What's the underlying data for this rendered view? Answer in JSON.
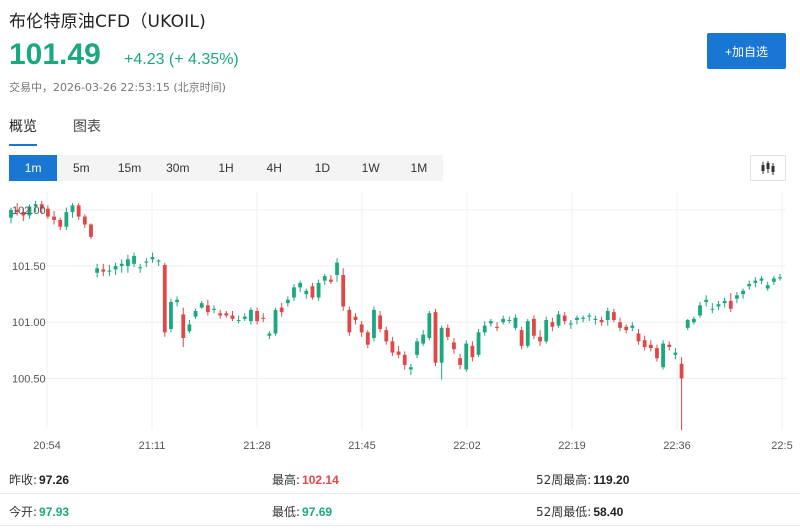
{
  "header": {
    "title": "布伦特原油CFD（UKOIL)",
    "price": "101.49",
    "change": "+4.23 (+ 4.35%)",
    "status": "交易中，2026-03-26 22:53:15 (北京时间)",
    "add_label": "+加自选"
  },
  "tabs": [
    {
      "label": "概览",
      "active": true
    },
    {
      "label": "图表",
      "active": false
    }
  ],
  "intervals": [
    {
      "label": "1m",
      "active": true
    },
    {
      "label": "5m"
    },
    {
      "label": "15m"
    },
    {
      "label": "30m"
    },
    {
      "label": "1H"
    },
    {
      "label": "4H"
    },
    {
      "label": "1D"
    },
    {
      "label": "1W"
    },
    {
      "label": "1M"
    }
  ],
  "chart_type_icon": "candlestick-icon",
  "colors": {
    "up": "#1aa97f",
    "down": "#e04848",
    "accent": "#1976d2"
  },
  "chart_data": {
    "type": "candlestick",
    "y_ticks": [
      "102.00",
      "101.50",
      "101.00",
      "100.50"
    ],
    "y_tick_values": [
      102.0,
      101.5,
      101.0,
      100.5
    ],
    "ylim": [
      100.05,
      102.15
    ],
    "x_ticks": [
      "20:54",
      "21:11",
      "21:28",
      "21:45",
      "22:02",
      "22:19",
      "22:36",
      "22:5"
    ],
    "grid": true,
    "candles": [
      [
        101.93,
        102.02,
        101.88,
        102.0
      ],
      [
        102.0,
        102.06,
        101.95,
        101.98
      ],
      [
        101.98,
        102.02,
        101.9,
        101.95
      ],
      [
        101.95,
        102.05,
        101.92,
        102.03
      ],
      [
        102.03,
        102.08,
        101.98,
        102.05
      ],
      [
        102.05,
        102.08,
        101.97,
        102.01
      ],
      [
        102.01,
        102.04,
        101.92,
        101.94
      ],
      [
        101.94,
        101.99,
        101.87,
        101.91
      ],
      [
        101.91,
        101.93,
        101.82,
        101.85
      ],
      [
        101.85,
        102.02,
        101.82,
        101.98
      ],
      [
        101.98,
        102.06,
        101.93,
        102.04
      ],
      [
        102.04,
        102.06,
        101.91,
        101.94
      ],
      [
        101.94,
        101.96,
        101.84,
        101.87
      ],
      [
        101.87,
        101.88,
        101.74,
        101.76
      ],
      [
        101.44,
        101.52,
        101.4,
        101.48
      ],
      [
        101.47,
        101.52,
        101.41,
        101.45
      ],
      [
        101.45,
        101.51,
        101.41,
        101.46
      ],
      [
        101.47,
        101.53,
        101.42,
        101.5
      ],
      [
        101.5,
        101.56,
        101.44,
        101.52
      ],
      [
        101.5,
        101.6,
        101.44,
        101.56
      ],
      [
        101.52,
        101.62,
        101.49,
        101.59
      ],
      [
        101.48,
        101.52,
        101.44,
        101.49
      ],
      [
        101.53,
        101.57,
        101.49,
        101.54
      ],
      [
        101.56,
        101.62,
        101.53,
        101.58
      ],
      [
        101.54,
        101.56,
        101.5,
        101.55
      ],
      [
        101.51,
        101.53,
        100.87,
        100.91
      ],
      [
        100.94,
        101.21,
        100.91,
        101.18
      ],
      [
        101.18,
        101.23,
        101.14,
        101.2
      ],
      [
        101.07,
        101.13,
        100.78,
        100.86
      ],
      [
        100.92,
        101.02,
        100.9,
        100.98
      ],
      [
        101.05,
        101.12,
        101.03,
        101.1
      ],
      [
        101.13,
        101.19,
        101.12,
        101.17
      ],
      [
        101.15,
        101.2,
        101.06,
        101.09
      ],
      [
        101.11,
        101.15,
        101.08,
        101.12
      ],
      [
        101.08,
        101.11,
        101.03,
        101.06
      ],
      [
        101.08,
        101.1,
        101.04,
        101.06
      ],
      [
        101.06,
        101.1,
        101.01,
        101.03
      ],
      [
        101.02,
        101.06,
        100.99,
        101.02
      ],
      [
        101.03,
        101.08,
        101.01,
        101.05
      ],
      [
        101.01,
        101.13,
        100.98,
        101.11
      ],
      [
        101.1,
        101.13,
        100.98,
        101.01
      ],
      [
        101.04,
        101.08,
        101.0,
        101.03
      ],
      [
        100.88,
        100.92,
        100.85,
        100.9
      ],
      [
        100.9,
        101.13,
        100.88,
        101.11
      ],
      [
        101.13,
        101.17,
        101.05,
        101.09
      ],
      [
        101.17,
        101.23,
        101.14,
        101.2
      ],
      [
        101.22,
        101.34,
        101.19,
        101.31
      ],
      [
        101.31,
        101.37,
        101.27,
        101.35
      ],
      [
        101.25,
        101.3,
        101.21,
        101.28
      ],
      [
        101.32,
        101.35,
        101.2,
        101.22
      ],
      [
        101.22,
        101.38,
        101.19,
        101.35
      ],
      [
        101.37,
        101.43,
        101.33,
        101.41
      ],
      [
        101.38,
        101.42,
        101.34,
        101.36
      ],
      [
        101.42,
        101.57,
        101.36,
        101.53
      ],
      [
        101.42,
        101.48,
        101.1,
        101.14
      ],
      [
        101.11,
        101.14,
        100.88,
        100.91
      ],
      [
        101.05,
        101.08,
        100.98,
        101.02
      ],
      [
        100.98,
        101.01,
        100.87,
        100.91
      ],
      [
        100.91,
        100.93,
        100.77,
        100.8
      ],
      [
        100.86,
        101.14,
        100.83,
        101.11
      ],
      [
        101.06,
        101.1,
        100.91,
        100.94
      ],
      [
        100.93,
        100.96,
        100.8,
        100.83
      ],
      [
        100.83,
        100.87,
        100.7,
        100.73
      ],
      [
        100.74,
        100.79,
        100.68,
        100.71
      ],
      [
        100.71,
        100.74,
        100.58,
        100.62
      ],
      [
        100.58,
        100.63,
        100.53,
        100.6
      ],
      [
        100.71,
        100.86,
        100.68,
        100.83
      ],
      [
        100.81,
        100.93,
        100.79,
        100.89
      ],
      [
        100.86,
        101.1,
        100.84,
        101.08
      ],
      [
        101.09,
        101.12,
        100.61,
        100.64
      ],
      [
        100.64,
        100.97,
        100.49,
        100.95
      ],
      [
        100.95,
        100.98,
        100.84,
        100.87
      ],
      [
        100.82,
        100.86,
        100.72,
        100.76
      ],
      [
        100.68,
        100.72,
        100.58,
        100.62
      ],
      [
        100.58,
        100.84,
        100.56,
        100.81
      ],
      [
        100.79,
        100.83,
        100.65,
        100.69
      ],
      [
        100.71,
        100.94,
        100.69,
        100.91
      ],
      [
        100.91,
        101.01,
        100.88,
        100.97
      ],
      [
        100.99,
        101.03,
        100.96,
        101.01
      ],
      [
        100.96,
        101.0,
        100.92,
        100.95
      ],
      [
        101.0,
        101.06,
        100.98,
        101.03
      ],
      [
        101.02,
        101.05,
        100.99,
        101.02
      ],
      [
        100.95,
        101.07,
        100.93,
        101.04
      ],
      [
        100.93,
        100.96,
        100.76,
        100.79
      ],
      [
        100.79,
        101.03,
        100.77,
        101.01
      ],
      [
        101.03,
        101.06,
        100.85,
        100.88
      ],
      [
        100.87,
        100.93,
        100.79,
        100.83
      ],
      [
        100.83,
        101.05,
        100.81,
        101.02
      ],
      [
        101.0,
        101.04,
        100.92,
        100.96
      ],
      [
        100.97,
        101.1,
        100.95,
        101.07
      ],
      [
        101.06,
        101.09,
        100.98,
        101.01
      ],
      [
        100.98,
        101.02,
        100.94,
        100.99
      ],
      [
        101.02,
        101.06,
        100.98,
        101.04
      ],
      [
        101.03,
        101.06,
        101.0,
        101.04
      ],
      [
        101.05,
        101.08,
        101.01,
        101.06
      ],
      [
        101.02,
        101.06,
        100.98,
        101.03
      ],
      [
        101.02,
        101.05,
        100.97,
        101.0
      ],
      [
        101.02,
        101.13,
        100.97,
        101.1
      ],
      [
        101.09,
        101.12,
        101.0,
        101.02
      ],
      [
        101.0,
        101.04,
        100.92,
        100.95
      ],
      [
        100.96,
        100.98,
        100.9,
        100.93
      ],
      [
        100.95,
        101.0,
        100.92,
        100.97
      ],
      [
        100.9,
        100.94,
        100.8,
        100.83
      ],
      [
        100.84,
        100.88,
        100.75,
        100.78
      ],
      [
        100.8,
        100.84,
        100.74,
        100.77
      ],
      [
        100.77,
        100.8,
        100.65,
        100.68
      ],
      [
        100.6,
        100.84,
        100.58,
        100.81
      ],
      [
        100.8,
        100.83,
        100.75,
        100.78
      ],
      [
        100.71,
        100.77,
        100.67,
        100.73
      ],
      [
        100.63,
        100.69,
        100.04,
        100.5
      ],
      [
        100.95,
        101.03,
        100.93,
        101.02
      ],
      [
        101.0,
        101.05,
        100.98,
        101.03
      ],
      [
        101.06,
        101.18,
        101.04,
        101.15
      ],
      [
        101.18,
        101.24,
        101.14,
        101.2
      ],
      [
        101.12,
        101.17,
        101.08,
        101.12
      ],
      [
        101.14,
        101.19,
        101.11,
        101.16
      ],
      [
        101.17,
        101.22,
        101.13,
        101.19
      ],
      [
        101.19,
        101.26,
        101.09,
        101.12
      ],
      [
        101.21,
        101.27,
        101.17,
        101.24
      ],
      [
        101.25,
        101.3,
        101.21,
        101.28
      ],
      [
        101.32,
        101.37,
        101.29,
        101.34
      ],
      [
        101.35,
        101.4,
        101.31,
        101.37
      ],
      [
        101.37,
        101.41,
        101.34,
        101.39
      ],
      [
        101.3,
        101.36,
        101.28,
        101.33
      ],
      [
        101.36,
        101.41,
        101.33,
        101.39
      ],
      [
        101.39,
        101.43,
        101.37,
        101.4
      ]
    ]
  },
  "stats": [
    [
      {
        "label": "昨收:",
        "value": "97.26",
        "tone": "neutral"
      },
      {
        "label": "最高:",
        "value": "102.14",
        "tone": "down"
      },
      {
        "label": "52周最高:",
        "value": "119.20",
        "tone": "neutral"
      }
    ],
    [
      {
        "label": "今开:",
        "value": "97.93",
        "tone": "up"
      },
      {
        "label": "最低:",
        "value": "97.69",
        "tone": "up"
      },
      {
        "label": "52周最低:",
        "value": "58.40",
        "tone": "neutral"
      }
    ]
  ]
}
